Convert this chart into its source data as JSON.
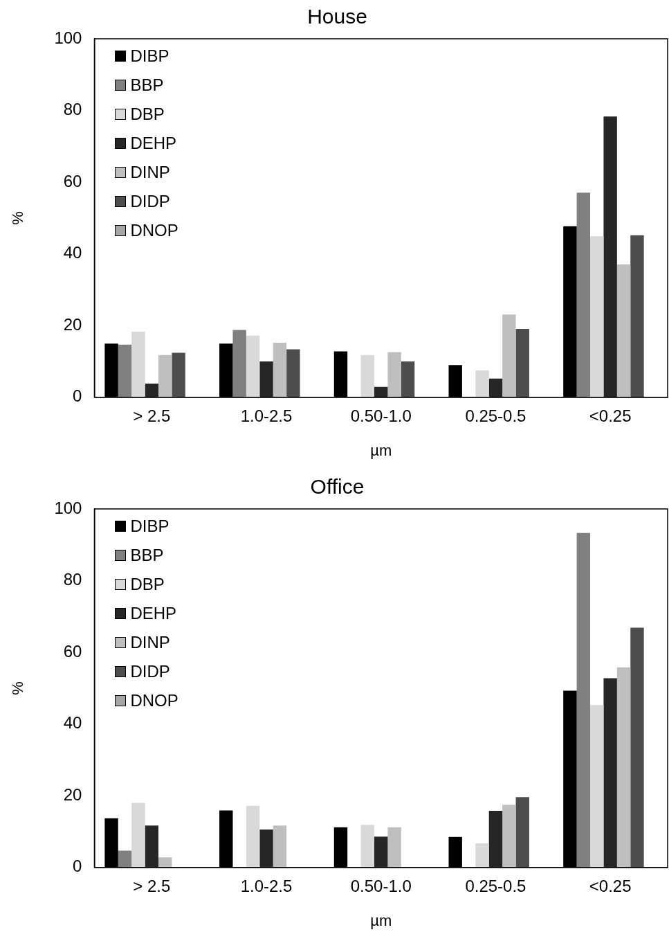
{
  "chart_data": [
    {
      "type": "bar",
      "title": "House",
      "xlabel": "µm",
      "ylabel": "%",
      "categories": [
        "> 2.5",
        "1.0-2.5",
        "0.50-1.0",
        "0.25-0.5",
        "<0.25"
      ],
      "ylim": [
        0,
        100
      ],
      "yticks": [
        0,
        20,
        40,
        60,
        80,
        100
      ],
      "grid": false,
      "legend": "top left",
      "series": [
        {
          "name": "DIBP",
          "color": "#000000",
          "values": [
            15.0,
            15.0,
            12.8,
            9.0,
            47.7
          ]
        },
        {
          "name": "BBP",
          "color": "#808080",
          "values": [
            14.7,
            18.8,
            null,
            null,
            57.1
          ]
        },
        {
          "name": "DBP",
          "color": "#d9d9d9",
          "values": [
            18.3,
            17.2,
            11.8,
            7.5,
            44.9
          ]
        },
        {
          "name": "DEHP",
          "color": "#262626",
          "values": [
            3.8,
            10.0,
            2.9,
            5.2,
            78.3
          ]
        },
        {
          "name": "DINP",
          "color": "#bfbfbf",
          "values": [
            11.8,
            15.2,
            12.6,
            23.1,
            37.1
          ]
        },
        {
          "name": "DIDP",
          "color": "#4d4d4d",
          "values": [
            12.4,
            13.4,
            10.0,
            19.1,
            45.2
          ]
        },
        {
          "name": "DNOP",
          "color": "#a6a6a6",
          "values": [
            null,
            null,
            null,
            null,
            null
          ]
        }
      ]
    },
    {
      "type": "bar",
      "title": "Office",
      "xlabel": "µm",
      "ylabel": "%",
      "categories": [
        "> 2.5",
        "1.0-2.5",
        "0.50-1.0",
        "0.25-0.5",
        "<0.25"
      ],
      "ylim": [
        0,
        100
      ],
      "yticks": [
        0,
        20,
        40,
        60,
        80,
        100
      ],
      "grid": false,
      "legend": "top left",
      "series": [
        {
          "name": "DIBP",
          "color": "#000000",
          "values": [
            13.7,
            15.9,
            11.2,
            8.5,
            49.3
          ]
        },
        {
          "name": "BBP",
          "color": "#808080",
          "values": [
            4.7,
            null,
            null,
            null,
            93.3
          ]
        },
        {
          "name": "DBP",
          "color": "#d9d9d9",
          "values": [
            18.0,
            17.2,
            11.9,
            6.7,
            45.3
          ]
        },
        {
          "name": "DEHP",
          "color": "#262626",
          "values": [
            11.7,
            10.6,
            8.6,
            15.8,
            52.8
          ]
        },
        {
          "name": "DINP",
          "color": "#bfbfbf",
          "values": [
            2.8,
            11.7,
            11.2,
            17.5,
            55.8
          ]
        },
        {
          "name": "DIDP",
          "color": "#4d4d4d",
          "values": [
            null,
            null,
            null,
            19.6,
            66.9
          ]
        },
        {
          "name": "DNOP",
          "color": "#a6a6a6",
          "values": [
            null,
            null,
            null,
            null,
            null
          ]
        }
      ]
    }
  ]
}
